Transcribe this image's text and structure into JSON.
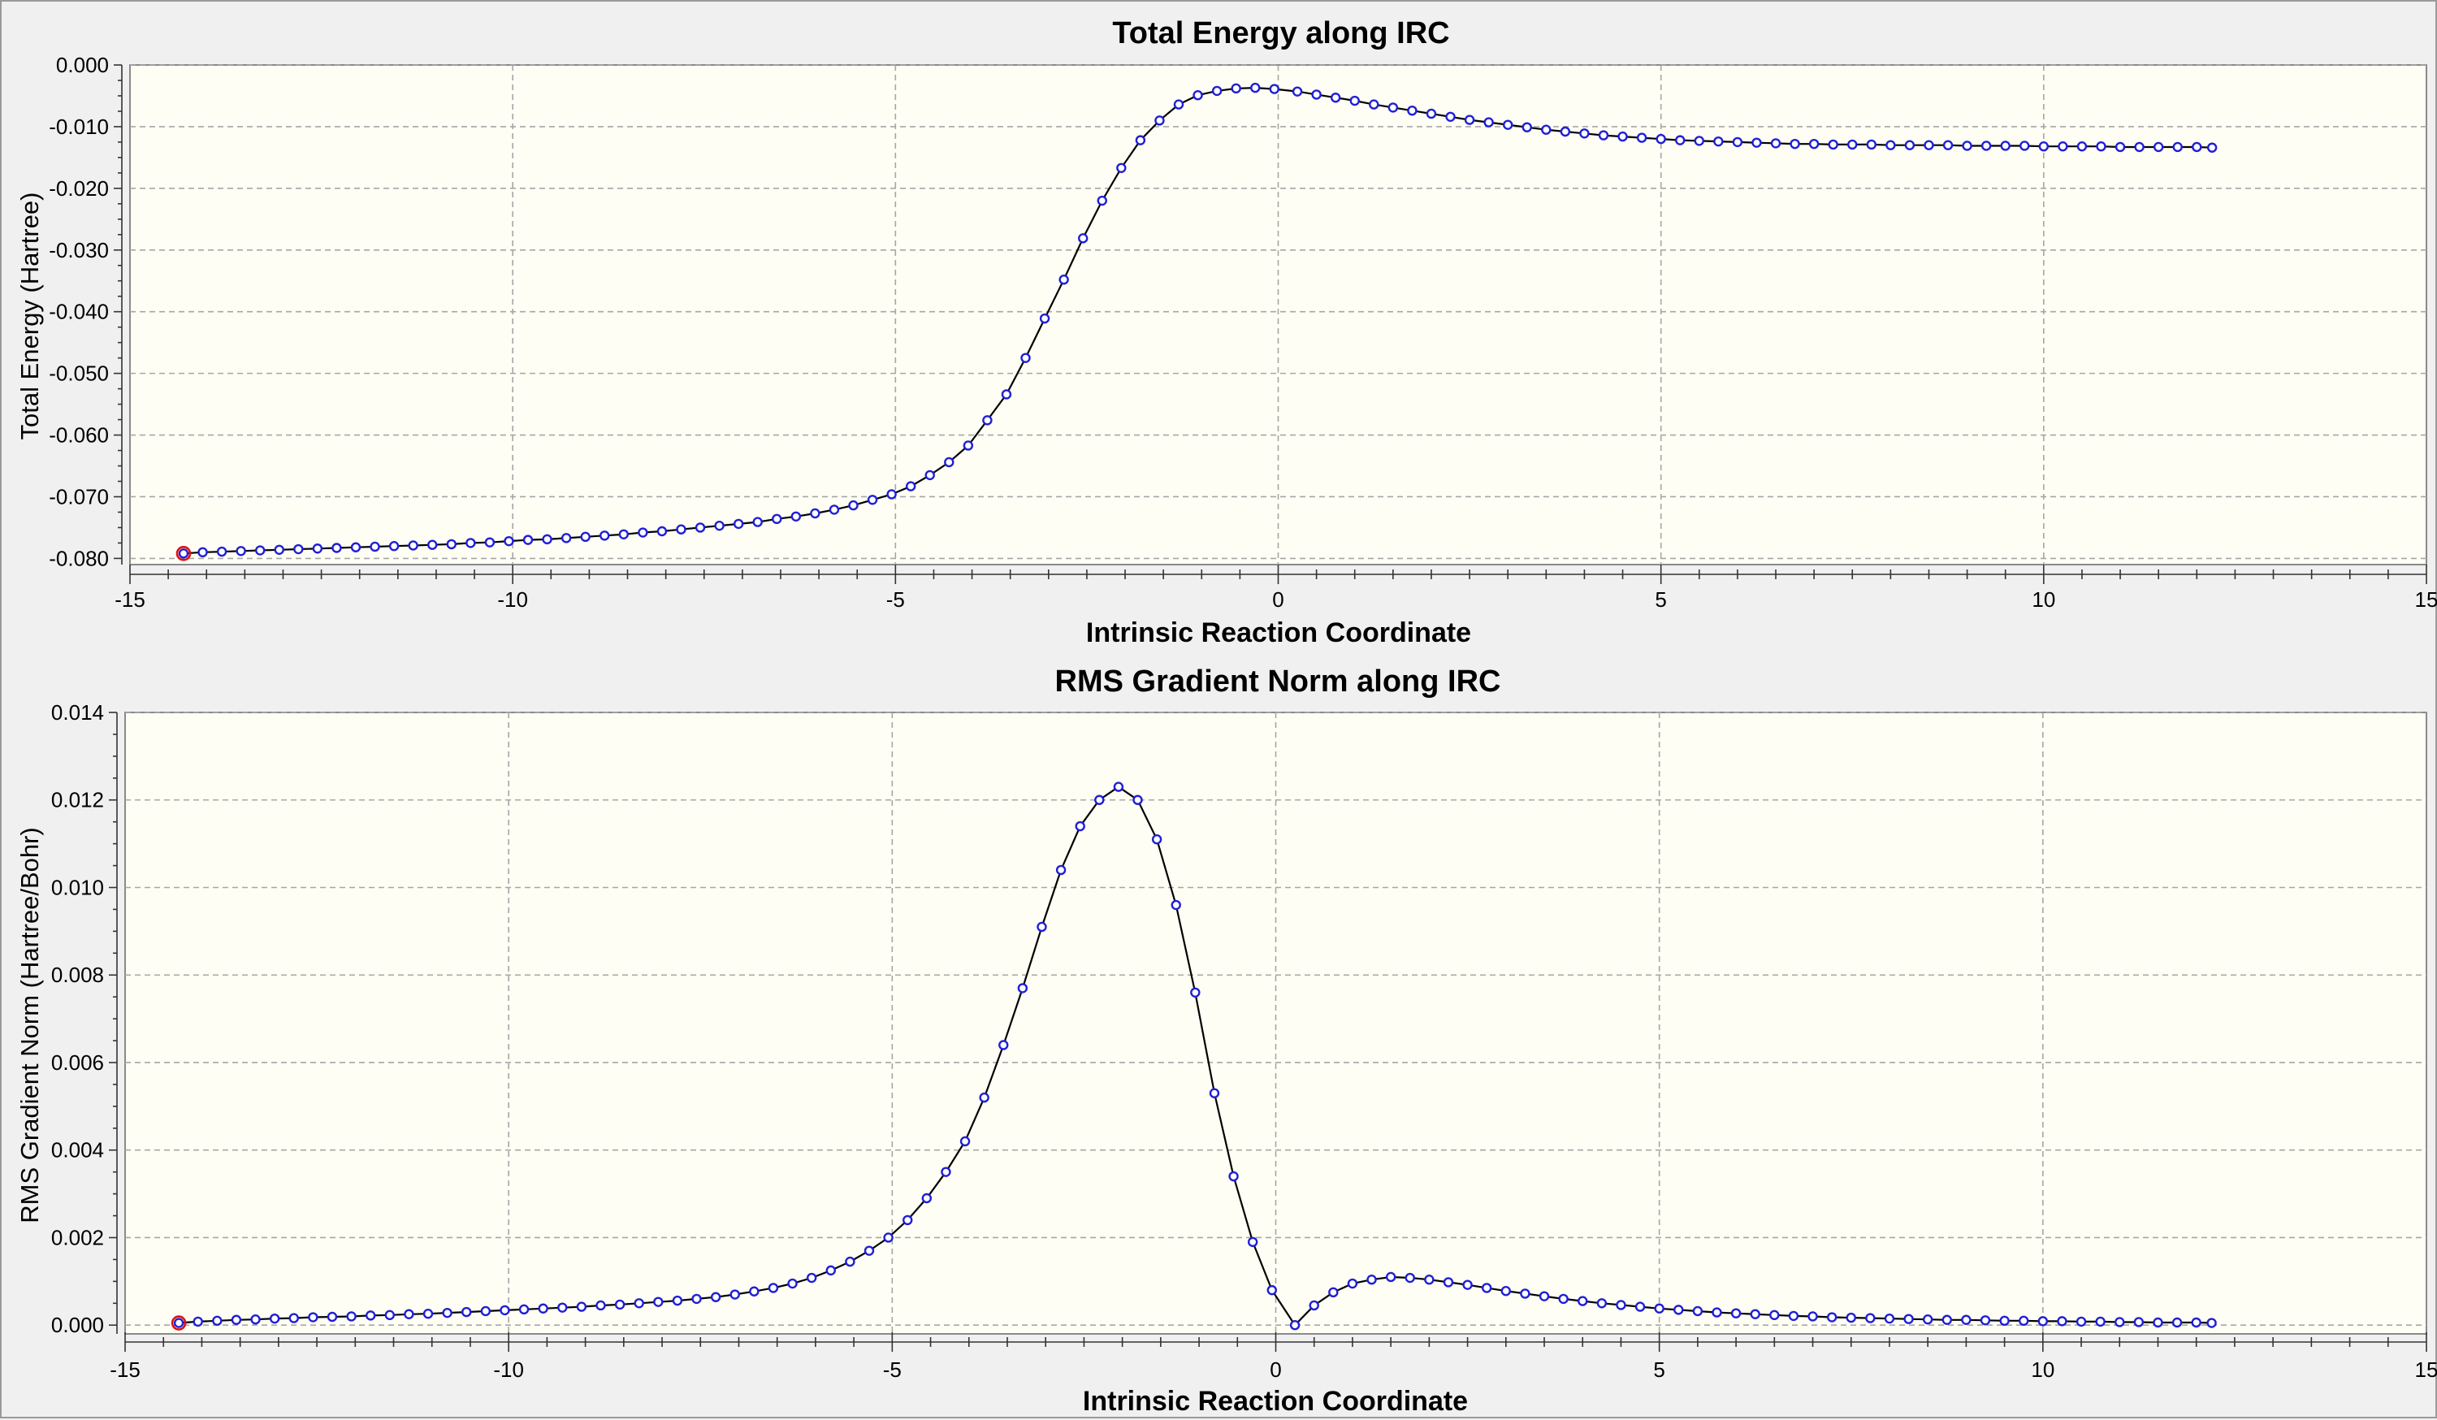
{
  "chart_data": [
    {
      "type": "line",
      "title": "Total Energy along IRC",
      "xlabel": "Intrinsic Reaction Coordinate",
      "ylabel": "Total Energy (Hartree)",
      "xlim": [
        -15,
        15
      ],
      "ylim": [
        -0.081,
        0.0
      ],
      "x_ticks": [
        -15,
        -10,
        -5,
        0,
        5,
        10,
        15
      ],
      "x_tick_labels": [
        "-15",
        "-10",
        "-5",
        "0",
        "5",
        "10",
        "15"
      ],
      "y_ticks": [
        0.0,
        -0.01,
        -0.02,
        -0.03,
        -0.04,
        -0.05,
        -0.06,
        -0.07,
        -0.08
      ],
      "y_tick_labels": [
        "0.000",
        "-0.010",
        "-0.020",
        "-0.030",
        "-0.040",
        "-0.050",
        "-0.060",
        "-0.070",
        "-0.080"
      ],
      "grid": true,
      "legend": "none",
      "current_point": {
        "x": -14.3,
        "y": -0.0792
      },
      "x": [
        -14.3,
        -14.05,
        -13.8,
        -13.55,
        -13.3,
        -13.05,
        -12.8,
        -12.55,
        -12.3,
        -12.05,
        -11.8,
        -11.55,
        -11.3,
        -11.05,
        -10.8,
        -10.55,
        -10.3,
        -10.05,
        -9.8,
        -9.55,
        -9.3,
        -9.05,
        -8.8,
        -8.55,
        -8.3,
        -8.05,
        -7.8,
        -7.55,
        -7.3,
        -7.05,
        -6.8,
        -6.55,
        -6.3,
        -6.05,
        -5.8,
        -5.55,
        -5.3,
        -5.05,
        -4.8,
        -4.55,
        -4.3,
        -4.05,
        -3.8,
        -3.55,
        -3.3,
        -3.05,
        -2.8,
        -2.55,
        -2.3,
        -2.05,
        -1.8,
        -1.55,
        -1.3,
        -1.05,
        -0.8,
        -0.55,
        -0.3,
        -0.05,
        0.25,
        0.5,
        0.75,
        1.0,
        1.25,
        1.5,
        1.75,
        2.0,
        2.25,
        2.5,
        2.75,
        3.0,
        3.25,
        3.5,
        3.75,
        4.0,
        4.25,
        4.5,
        4.75,
        5.0,
        5.25,
        5.5,
        5.75,
        6.0,
        6.25,
        6.5,
        6.75,
        7.0,
        7.25,
        7.5,
        7.75,
        8.0,
        8.25,
        8.5,
        8.75,
        9.0,
        9.25,
        9.5,
        9.75,
        10.0,
        10.25,
        10.5,
        10.75,
        11.0,
        11.25,
        11.5,
        11.75,
        12.0,
        12.2
      ],
      "y": [
        -0.0792,
        -0.079,
        -0.0789,
        -0.0788,
        -0.0787,
        -0.0786,
        -0.0785,
        -0.0784,
        -0.0783,
        -0.0782,
        -0.0781,
        -0.078,
        -0.0779,
        -0.0778,
        -0.0777,
        -0.0775,
        -0.0774,
        -0.0772,
        -0.077,
        -0.0769,
        -0.0767,
        -0.0765,
        -0.0763,
        -0.0761,
        -0.0758,
        -0.0756,
        -0.0753,
        -0.075,
        -0.0747,
        -0.0744,
        -0.0741,
        -0.0736,
        -0.0732,
        -0.0727,
        -0.0721,
        -0.0714,
        -0.0705,
        -0.0696,
        -0.0683,
        -0.0665,
        -0.0644,
        -0.0617,
        -0.0576,
        -0.0534,
        -0.0475,
        -0.0411,
        -0.0348,
        -0.0281,
        -0.022,
        -0.0167,
        -0.0122,
        -0.009,
        -0.0064,
        -0.0049,
        -0.0042,
        -0.0038,
        -0.0037,
        -0.0039,
        -0.0043,
        -0.0048,
        -0.0053,
        -0.0058,
        -0.0064,
        -0.0069,
        -0.0074,
        -0.0079,
        -0.0084,
        -0.0089,
        -0.0093,
        -0.0097,
        -0.0101,
        -0.0105,
        -0.0108,
        -0.0111,
        -0.0114,
        -0.0116,
        -0.0118,
        -0.012,
        -0.0122,
        -0.0123,
        -0.0124,
        -0.0125,
        -0.0126,
        -0.0127,
        -0.0128,
        -0.0128,
        -0.0129,
        -0.0129,
        -0.0129,
        -0.013,
        -0.013,
        -0.013,
        -0.013,
        -0.0131,
        -0.0131,
        -0.0131,
        -0.0131,
        -0.0132,
        -0.0132,
        -0.0132,
        -0.0132,
        -0.0133,
        -0.0133,
        -0.0133,
        -0.0133,
        -0.0133,
        -0.0134
      ]
    },
    {
      "type": "line",
      "title": "RMS Gradient Norm along IRC",
      "xlabel": "Intrinsic Reaction Coordinate",
      "ylabel": "RMS Gradient Norm (Hartree/Bohr)",
      "xlim": [
        -15,
        15
      ],
      "ylim": [
        -0.0002,
        0.014
      ],
      "x_ticks": [
        -15,
        -10,
        -5,
        0,
        5,
        10,
        15
      ],
      "x_tick_labels": [
        "-15",
        "-10",
        "-5",
        "0",
        "5",
        "10",
        "15"
      ],
      "y_ticks": [
        0.0,
        0.002,
        0.004,
        0.006,
        0.008,
        0.01,
        0.012,
        0.014
      ],
      "y_tick_labels": [
        "0.000",
        "0.002",
        "0.004",
        "0.006",
        "0.008",
        "0.010",
        "0.012",
        "0.014"
      ],
      "grid": true,
      "legend": "none",
      "current_point": {
        "x": -14.3,
        "y": 5e-05
      },
      "x": [
        -14.3,
        -14.05,
        -13.8,
        -13.55,
        -13.3,
        -13.05,
        -12.8,
        -12.55,
        -12.3,
        -12.05,
        -11.8,
        -11.55,
        -11.3,
        -11.05,
        -10.8,
        -10.55,
        -10.3,
        -10.05,
        -9.8,
        -9.55,
        -9.3,
        -9.05,
        -8.8,
        -8.55,
        -8.3,
        -8.05,
        -7.8,
        -7.55,
        -7.3,
        -7.05,
        -6.8,
        -6.55,
        -6.3,
        -6.05,
        -5.8,
        -5.55,
        -5.3,
        -5.05,
        -4.8,
        -4.55,
        -4.3,
        -4.05,
        -3.8,
        -3.55,
        -3.3,
        -3.05,
        -2.8,
        -2.55,
        -2.3,
        -2.05,
        -1.8,
        -1.55,
        -1.3,
        -1.05,
        -0.8,
        -0.55,
        -0.3,
        -0.05,
        0.25,
        0.5,
        0.75,
        1.0,
        1.25,
        1.5,
        1.75,
        2.0,
        2.25,
        2.5,
        2.75,
        3.0,
        3.25,
        3.5,
        3.75,
        4.0,
        4.25,
        4.5,
        4.75,
        5.0,
        5.25,
        5.5,
        5.75,
        6.0,
        6.25,
        6.5,
        6.75,
        7.0,
        7.25,
        7.5,
        7.75,
        8.0,
        8.25,
        8.5,
        8.75,
        9.0,
        9.25,
        9.5,
        9.75,
        10.0,
        10.25,
        10.5,
        10.75,
        11.0,
        11.25,
        11.5,
        11.75,
        12.0,
        12.2
      ],
      "y": [
        5e-05,
        8e-05,
        0.0001,
        0.00012,
        0.00013,
        0.00015,
        0.00016,
        0.00018,
        0.00019,
        0.0002,
        0.00022,
        0.00023,
        0.00025,
        0.00026,
        0.00028,
        0.0003,
        0.00032,
        0.00034,
        0.00036,
        0.00038,
        0.0004,
        0.00042,
        0.00045,
        0.00047,
        0.0005,
        0.00053,
        0.00056,
        0.0006,
        0.00064,
        0.0007,
        0.00077,
        0.00085,
        0.00095,
        0.00108,
        0.00125,
        0.00145,
        0.0017,
        0.002,
        0.0024,
        0.0029,
        0.0035,
        0.0042,
        0.0052,
        0.0064,
        0.0077,
        0.0091,
        0.0104,
        0.0114,
        0.012,
        0.0123,
        0.012,
        0.0111,
        0.0096,
        0.0076,
        0.0053,
        0.0034,
        0.0019,
        0.0008,
        0.0,
        0.00045,
        0.00075,
        0.00095,
        0.00104,
        0.0011,
        0.00108,
        0.00104,
        0.00098,
        0.00092,
        0.00085,
        0.00078,
        0.00072,
        0.00066,
        0.0006,
        0.00055,
        0.0005,
        0.00046,
        0.00042,
        0.00038,
        0.00035,
        0.00032,
        0.00029,
        0.00027,
        0.00025,
        0.00023,
        0.00021,
        0.0002,
        0.00018,
        0.00017,
        0.00016,
        0.00015,
        0.00014,
        0.00013,
        0.00012,
        0.00012,
        0.00011,
        0.0001,
        0.0001,
        9e-05,
        9e-05,
        8e-05,
        8e-05,
        7e-05,
        7e-05,
        6e-05,
        6e-05,
        6e-05,
        5e-05
      ]
    }
  ]
}
